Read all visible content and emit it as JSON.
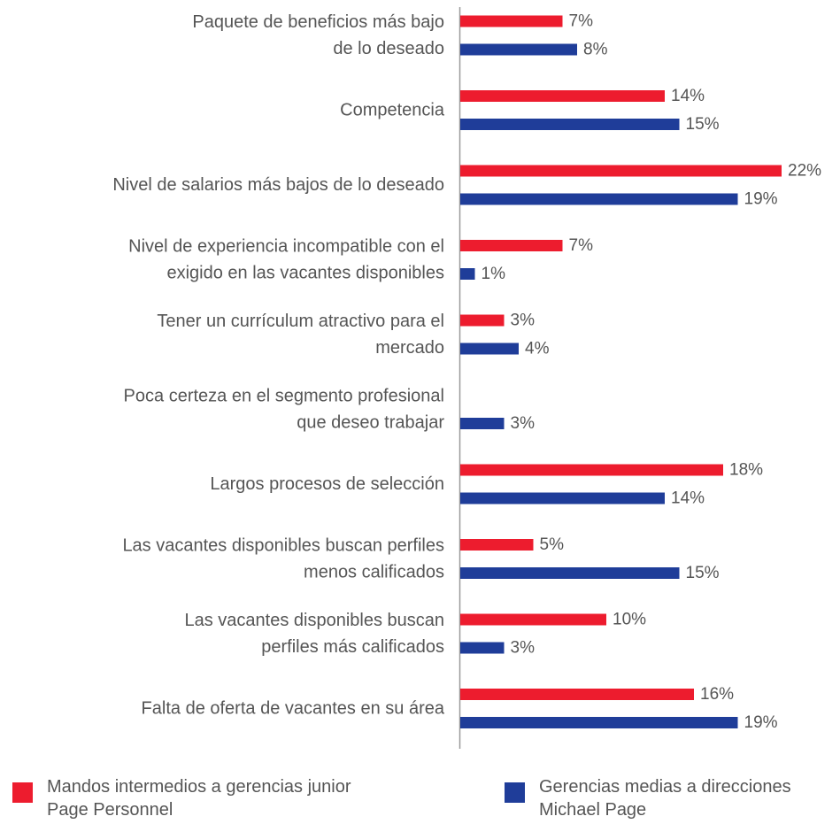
{
  "chart_data": {
    "type": "bar",
    "orientation": "horizontal",
    "unit": "%",
    "categories": [
      [
        "Paquete de beneficios más bajo",
        "de lo deseado"
      ],
      [
        "Competencia"
      ],
      [
        "Nivel de salarios más bajos de lo deseado"
      ],
      [
        "Nivel de experiencia incompatible con el",
        "exigido en las vacantes disponibles"
      ],
      [
        "Tener un currículum atractivo para el",
        "mercado"
      ],
      [
        "Poca certeza en el segmento profesional",
        "que deseo trabajar"
      ],
      [
        "Largos procesos de selección"
      ],
      [
        "Las vacantes disponibles buscan perfiles",
        "menos calificados"
      ],
      [
        "Las vacantes disponibles buscan",
        "perfiles más calificados"
      ],
      [
        "Falta de oferta de vacantes en su área"
      ]
    ],
    "series": [
      {
        "name": "Mandos intermedios a gerencias junior Page Personnel",
        "legend_lines": [
          "Mandos intermedios a gerencias junior",
          "Page Personnel"
        ],
        "color": "#ed1c2e",
        "values": [
          7,
          14,
          22,
          7,
          3,
          null,
          18,
          5,
          10,
          16
        ],
        "labels": [
          "7%",
          "14%",
          "22%",
          "7%",
          "3%",
          "",
          "18%",
          "5%",
          "10%",
          "16%"
        ]
      },
      {
        "name": "Gerencias medias a direcciones Michael Page",
        "legend_lines": [
          "Gerencias medias a direcciones",
          "Michael Page"
        ],
        "color": "#1f3d99",
        "values": [
          8,
          15,
          19,
          1,
          4,
          3,
          14,
          15,
          3,
          19
        ],
        "labels": [
          "8%",
          "15%",
          "19%",
          "1%",
          "4%",
          "3%",
          "14%",
          "15%",
          "3%",
          "19%"
        ]
      }
    ],
    "xlim": [
      0,
      22
    ],
    "grid": false,
    "legend_position": "bottom"
  }
}
